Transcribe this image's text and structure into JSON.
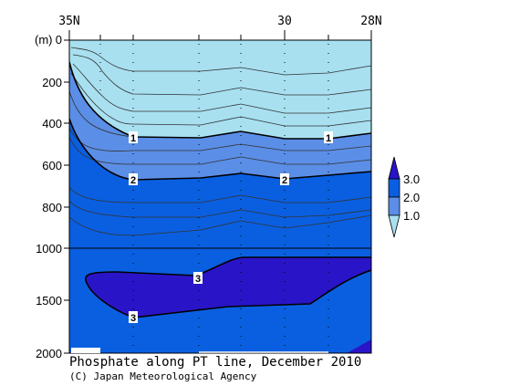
{
  "chart_data": {
    "type": "contour",
    "title": "Phosphate along PT line, December 2010",
    "credit": "(C) Japan Meteorological Agency",
    "ylabel": "(m)",
    "x_tick_labels": [
      "35N",
      "30",
      "28N"
    ],
    "y_tick_labels": [
      "0",
      "200",
      "400",
      "600",
      "800",
      "1000",
      "1500",
      "2000"
    ],
    "y_axis": "depth (m), increasing downward; 0–1000 linear, 1000–2000 compressed",
    "legend": {
      "labels": [
        "3.0",
        "2.0",
        "1.0"
      ],
      "bands": [
        {
          "range": "< 1.0",
          "color": "#a8e0f0"
        },
        {
          "range": "1.0–2.0",
          "color": "#5b8ee6"
        },
        {
          "range": "2.0–3.0",
          "color": "#0a5fe0"
        },
        {
          "range": "> 3.0",
          "color": "#2a14c8"
        }
      ]
    },
    "contour_labels": [
      "1",
      "1",
      "2",
      "2",
      "3",
      "3"
    ],
    "levels": {
      "1.0": {
        "depths_m_along_section": [
          460,
          470,
          440,
          470,
          460
        ]
      },
      "2.0": {
        "depths_m_along_section": [
          680,
          665,
          645,
          675,
          650
        ]
      },
      "3.0": {
        "depth_range_m": [
          1080,
          1650
        ]
      }
    },
    "colors": {
      "low": "#a8e0f0",
      "mid": "#5b8ee6",
      "high": "#0a5fe0",
      "max": "#2a14c8"
    }
  }
}
